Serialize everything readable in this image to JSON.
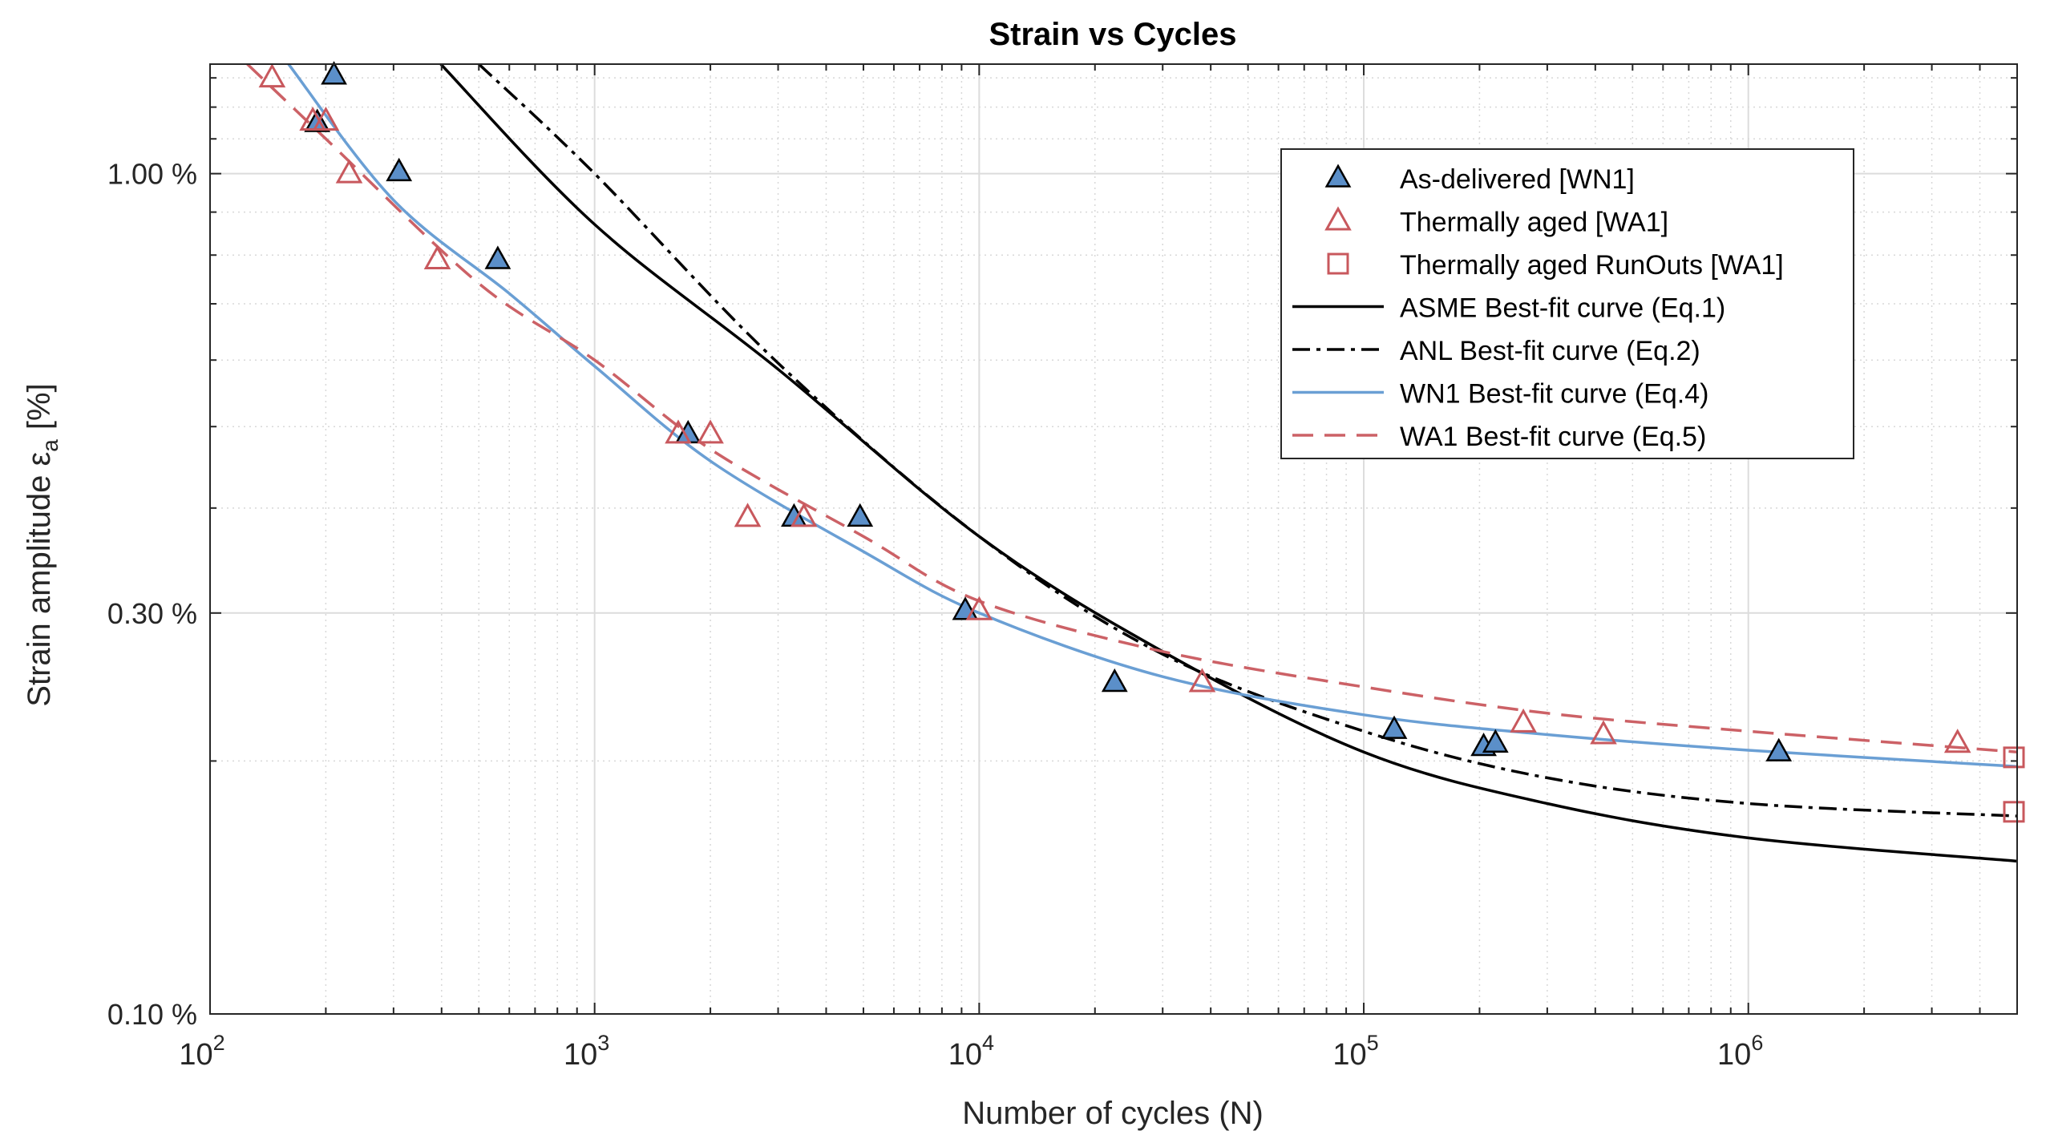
{
  "chart_data": {
    "type": "scatter",
    "title": "Strain vs Cycles",
    "xlabel": "Number of cycles (N)",
    "ylabel": "Strain amplitude ε",
    "ylabel_sub": "a",
    "ylabel_unit": "[%]",
    "x_scale": "log",
    "y_scale": "log",
    "xlim": [
      100,
      5000000
    ],
    "ylim": [
      0.1,
      1.35
    ],
    "x_ticks": [
      {
        "value": 100,
        "base": "10",
        "exp": "2"
      },
      {
        "value": 1000,
        "base": "10",
        "exp": "3"
      },
      {
        "value": 10000,
        "base": "10",
        "exp": "4"
      },
      {
        "value": 100000,
        "base": "10",
        "exp": "5"
      },
      {
        "value": 1000000,
        "base": "10",
        "exp": "6"
      }
    ],
    "y_ticks": [
      {
        "value": 0.1,
        "label": "0.10 %"
      },
      {
        "value": 0.3,
        "label": "0.30 %"
      },
      {
        "value": 1.0,
        "label": "1.00 %"
      }
    ],
    "grid": true,
    "legend_position": "top-right",
    "colors": {
      "wn1": "#5b8fc9",
      "wn1_edge": "#000000",
      "wa1": "#c8585d",
      "asme": "#000000",
      "anl": "#000000",
      "wn1_curve": "#6a9fd4",
      "wa1_curve": "#cc6166"
    },
    "series": [
      {
        "name": "As-delivered [WN1]",
        "kind": "marker",
        "marker": "triangle-filled",
        "points": [
          [
            210,
            1.31
          ],
          [
            190,
            1.15
          ],
          [
            310,
            1.005
          ],
          [
            560,
            0.79
          ],
          [
            1750,
            0.49
          ],
          [
            3300,
            0.39
          ],
          [
            4900,
            0.39
          ],
          [
            9200,
            0.302
          ],
          [
            22500,
            0.248
          ],
          [
            120000,
            0.218
          ],
          [
            205000,
            0.208
          ],
          [
            220000,
            0.21
          ],
          [
            1200000,
            0.205
          ]
        ]
      },
      {
        "name": "Thermally aged [WA1]",
        "kind": "marker",
        "marker": "triangle-open",
        "points": [
          [
            145,
            1.3
          ],
          [
            185,
            1.155
          ],
          [
            200,
            1.155
          ],
          [
            230,
            1.0
          ],
          [
            390,
            0.79
          ],
          [
            1650,
            0.49
          ],
          [
            2000,
            0.49
          ],
          [
            2500,
            0.39
          ],
          [
            3500,
            0.39
          ],
          [
            10000,
            0.302
          ],
          [
            38000,
            0.248
          ],
          [
            260000,
            0.222
          ],
          [
            420000,
            0.215
          ],
          [
            3500000,
            0.21
          ]
        ]
      },
      {
        "name": "Thermally aged RunOuts [WA1]",
        "kind": "marker",
        "marker": "square-open",
        "points": [
          [
            5000000,
            0.202
          ],
          [
            5000000,
            0.174
          ]
        ]
      },
      {
        "name": "ASME Best-fit curve (Eq.1)",
        "kind": "line",
        "style": "solid",
        "points": [
          [
            398,
            1.35
          ],
          [
            1000,
            0.87
          ],
          [
            3000,
            0.585
          ],
          [
            10000,
            0.37
          ],
          [
            30000,
            0.27
          ],
          [
            100000,
            0.205
          ],
          [
            300000,
            0.178
          ],
          [
            1000000,
            0.162
          ],
          [
            5000000,
            0.152
          ]
        ]
      },
      {
        "name": "ANL Best-fit curve (Eq.2)",
        "kind": "line",
        "style": "dashdot",
        "points": [
          [
            500,
            1.35
          ],
          [
            1000,
            1.0
          ],
          [
            3000,
            0.595
          ],
          [
            10000,
            0.37
          ],
          [
            30000,
            0.268
          ],
          [
            100000,
            0.217
          ],
          [
            300000,
            0.191
          ],
          [
            1000000,
            0.178
          ],
          [
            5000000,
            0.172
          ]
        ]
      },
      {
        "name": "WN1 Best-fit curve (Eq.4)",
        "kind": "line",
        "style": "solid",
        "points": [
          [
            160,
            1.35
          ],
          [
            300,
            0.93
          ],
          [
            600,
            0.72
          ],
          [
            1000,
            0.59
          ],
          [
            2000,
            0.455
          ],
          [
            5000,
            0.355
          ],
          [
            10000,
            0.3
          ],
          [
            30000,
            0.252
          ],
          [
            100000,
            0.227
          ],
          [
            300000,
            0.215
          ],
          [
            1000000,
            0.206
          ],
          [
            5000000,
            0.197
          ]
        ]
      },
      {
        "name": "WA1 Best-fit curve (Eq.5)",
        "kind": "line",
        "style": "dashed",
        "points": [
          [
            125,
            1.35
          ],
          [
            200,
            1.1
          ],
          [
            500,
            0.74
          ],
          [
            1000,
            0.6
          ],
          [
            2000,
            0.47
          ],
          [
            5000,
            0.37
          ],
          [
            10000,
            0.31
          ],
          [
            30000,
            0.27
          ],
          [
            100000,
            0.245
          ],
          [
            300000,
            0.228
          ],
          [
            1000000,
            0.217
          ],
          [
            5000000,
            0.205
          ]
        ]
      }
    ]
  }
}
